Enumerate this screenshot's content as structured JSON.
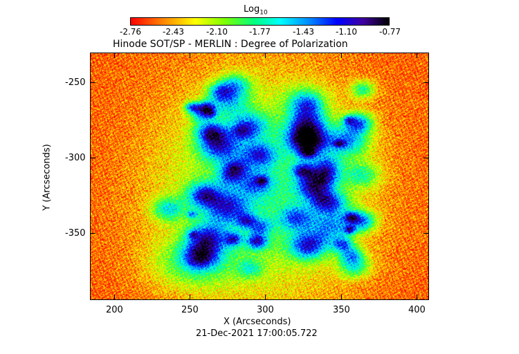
{
  "chart_data": {
    "type": "heatmap",
    "title": "Hinode SOT/SP - MERLIN : Degree of Polarization",
    "xlabel": "X (Arcseconds)",
    "ylabel": "Y (Arcseconds)",
    "timestamp": "21-Dec-2021 17:00:05.722",
    "xlim": [
      184,
      408
    ],
    "ylim": [
      -394,
      -230
    ],
    "x_ticks": [
      200,
      250,
      300,
      350,
      400
    ],
    "y_ticks": [
      -250,
      -300,
      -350
    ],
    "colorbar": {
      "label": "Log",
      "label_subscript": "10",
      "range": [
        -2.76,
        -0.77
      ],
      "ticks": [
        "-2.76",
        "-2.43",
        "-2.10",
        "-1.77",
        "-1.43",
        "-1.10",
        "-0.77"
      ],
      "colormap": [
        "#ff0000",
        "#ff8000",
        "#ffff00",
        "#80ff00",
        "#00ff80",
        "#00ffff",
        "#0080ff",
        "#0000ff",
        "#4000a0",
        "#000000"
      ]
    }
  }
}
